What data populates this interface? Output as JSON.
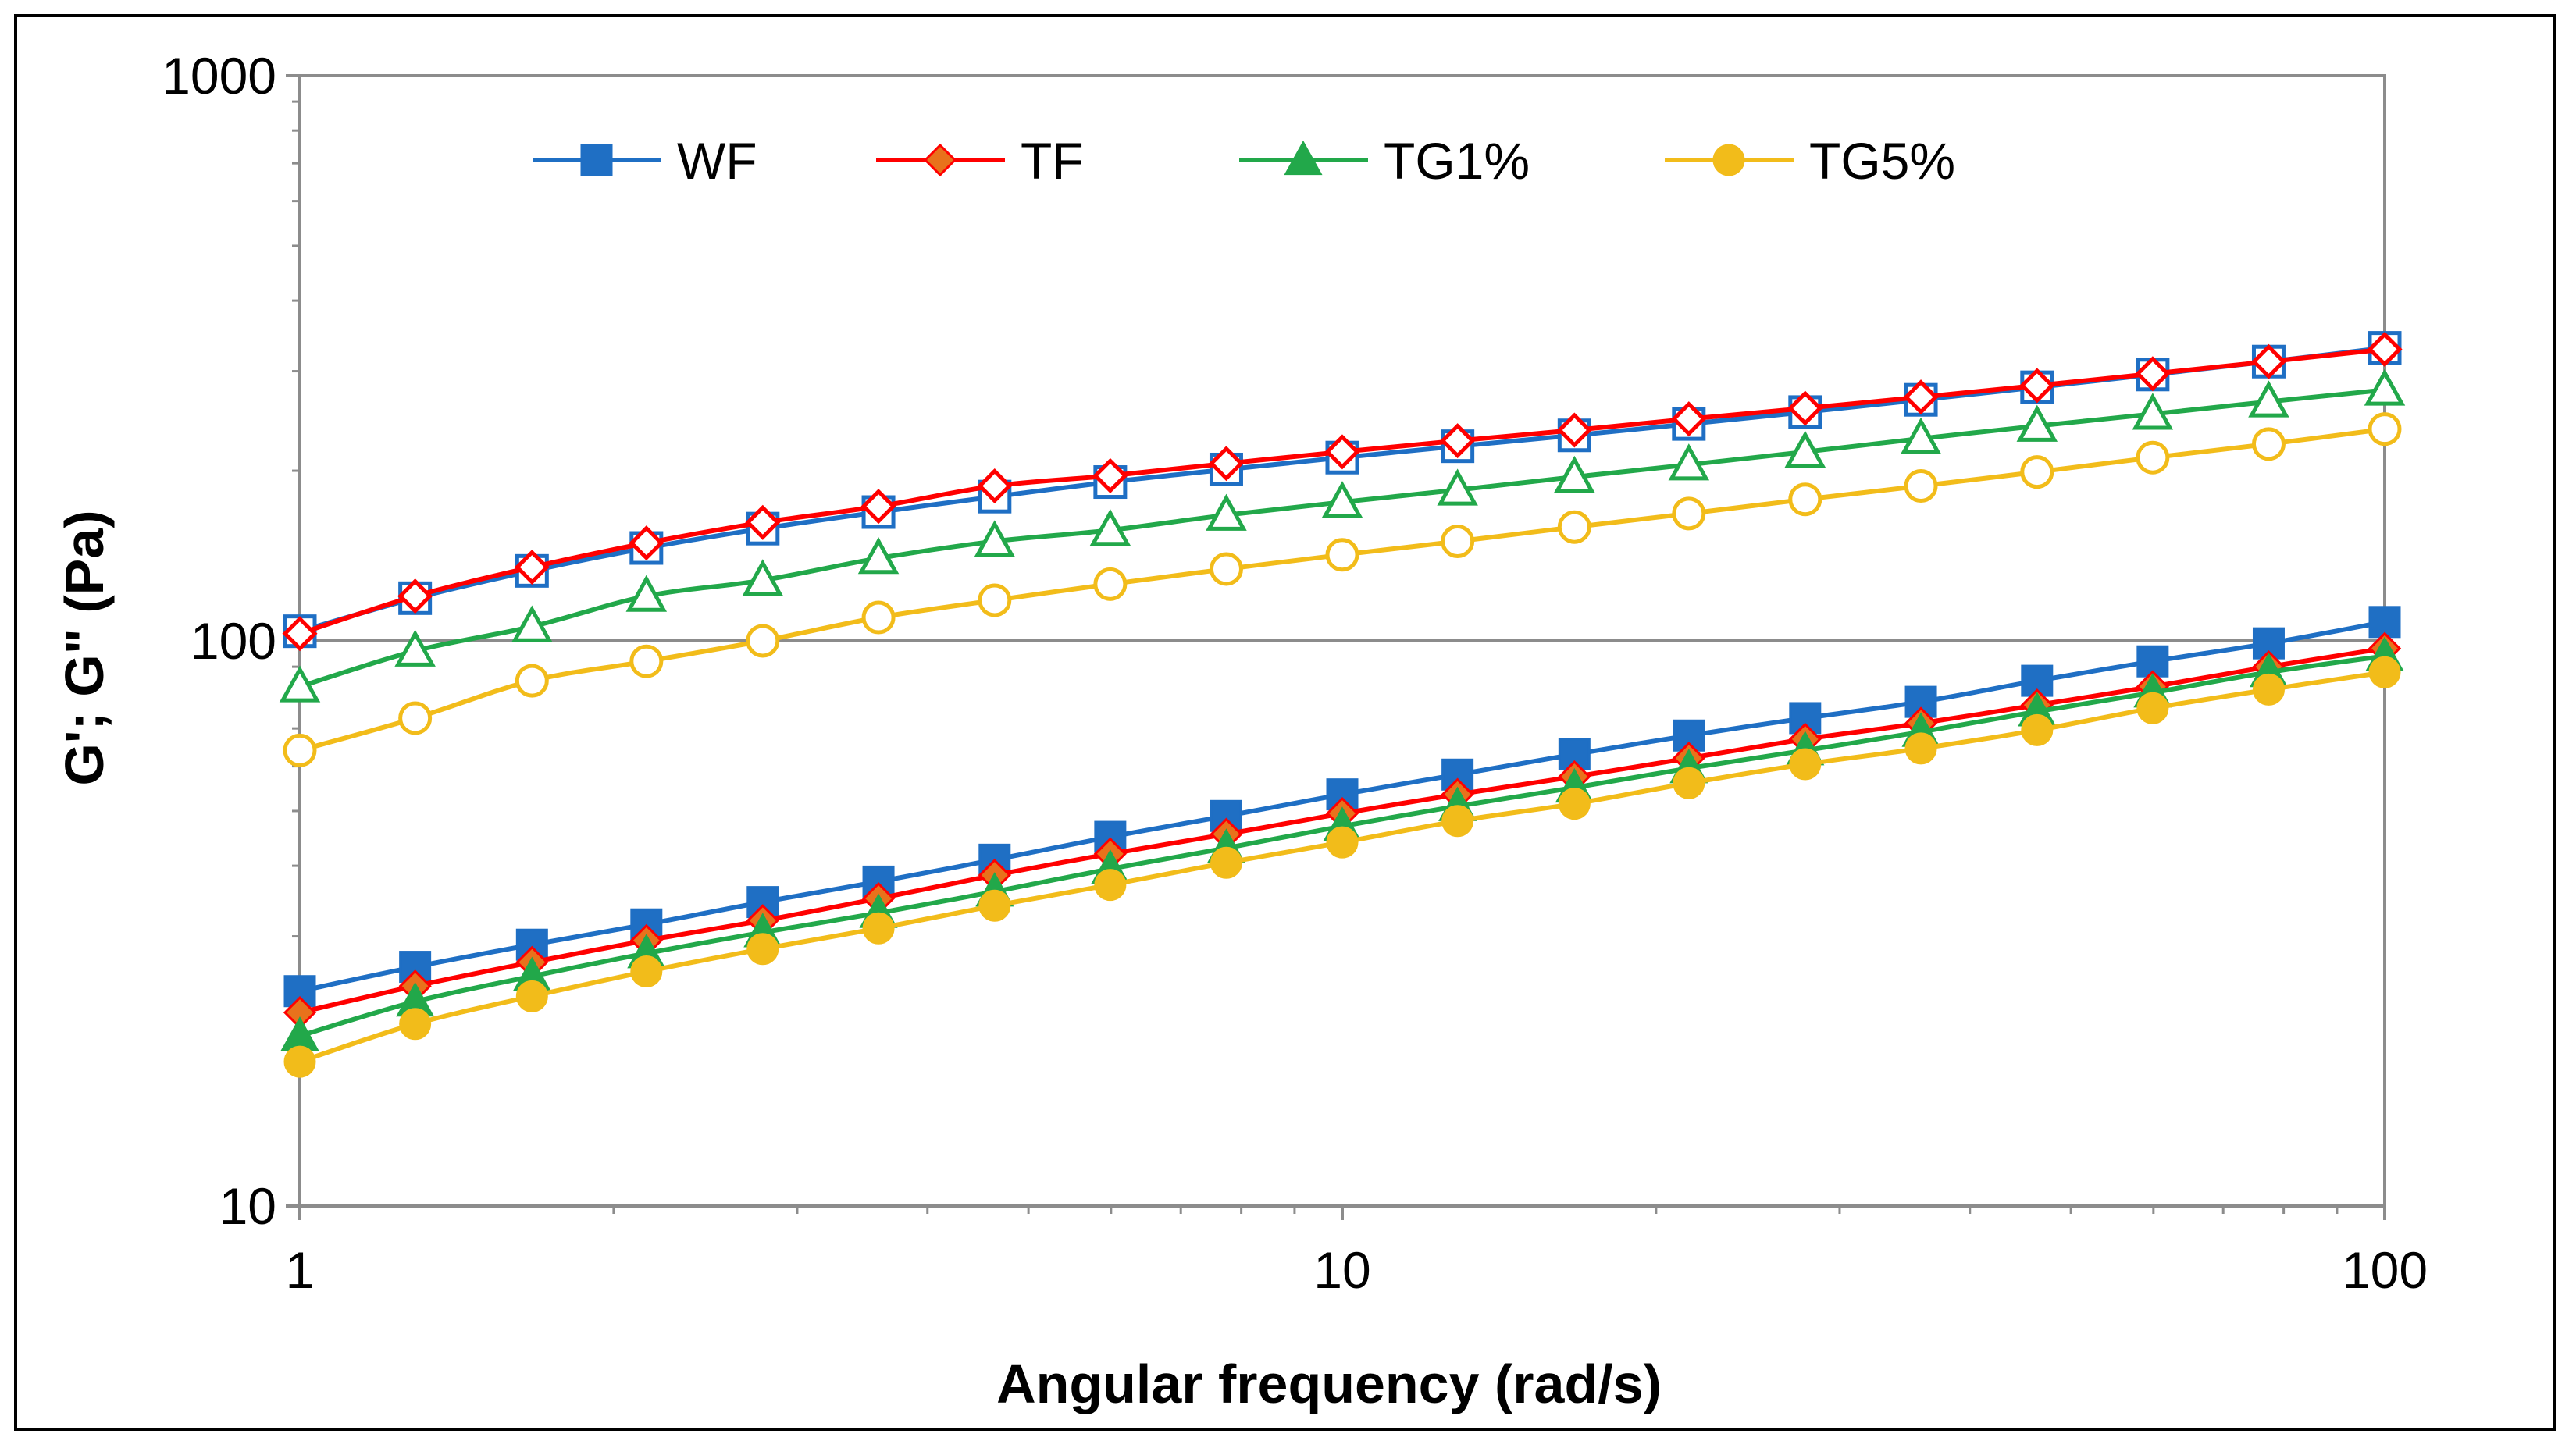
{
  "chart_data": {
    "type": "line",
    "title": "",
    "xlabel": "Angular frequency (rad/s)",
    "ylabel": "G'; G\" (Pa)",
    "xscale": "log",
    "yscale": "log",
    "xlim": [
      1,
      100
    ],
    "ylim": [
      10,
      1000
    ],
    "x_ticks": [
      1,
      10,
      100
    ],
    "x_tick_labels": [
      "1",
      "10",
      "100"
    ],
    "y_ticks": [
      10,
      100,
      1000
    ],
    "y_tick_labels": [
      "10",
      "100",
      "1000"
    ],
    "grid": "horizontal major",
    "legend_position": "top",
    "x": [
      1,
      1.29,
      1.67,
      2.15,
      2.78,
      3.59,
      4.64,
      5.99,
      7.74,
      10,
      12.9,
      16.7,
      21.5,
      27.8,
      35.9,
      46.4,
      59.9,
      77.4,
      100
    ],
    "legend": [
      {
        "name": "WF",
        "color": "#1f6fc4",
        "marker": "square"
      },
      {
        "name": "TF",
        "color": "#ff0000",
        "marker_fill": "#e8721c",
        "marker": "diamond"
      },
      {
        "name": "TG1%",
        "color": "#22a84a",
        "marker": "triangle"
      },
      {
        "name": "TG5%",
        "color": "#f2bc1a",
        "marker": "circle"
      }
    ],
    "series": [
      {
        "name": "WF G'",
        "sample": "WF",
        "modulus": "storage",
        "filled": false,
        "color": "#1f6fc4",
        "marker": "square",
        "values": [
          104,
          119,
          133,
          146,
          158,
          169,
          180,
          191,
          201,
          211,
          221,
          231,
          242,
          254,
          267,
          281,
          296,
          312,
          330
        ]
      },
      {
        "name": "TF G'",
        "sample": "TF",
        "modulus": "storage",
        "filled": false,
        "color": "#ff0000",
        "marker": "diamond",
        "values": [
          103,
          120,
          135,
          149,
          162,
          173,
          188,
          196,
          206,
          216,
          226,
          236,
          247,
          258,
          270,
          283,
          297,
          312,
          328
        ]
      },
      {
        "name": "TG1% G'",
        "sample": "TG1%",
        "modulus": "storage",
        "filled": false,
        "color": "#22a84a",
        "marker": "triangle",
        "values": [
          83,
          96,
          106,
          120,
          128,
          140,
          150,
          157,
          167,
          176,
          185,
          195,
          205,
          216,
          228,
          240,
          252,
          265,
          278
        ]
      },
      {
        "name": "TG5% G'",
        "sample": "TG5%",
        "modulus": "storage",
        "filled": false,
        "color": "#f2bc1a",
        "marker": "circle",
        "values": [
          64,
          73,
          85,
          92,
          100,
          110,
          118,
          126,
          134,
          142,
          150,
          159,
          168,
          178,
          188,
          199,
          211,
          223,
          237
        ]
      },
      {
        "name": "WF G\"",
        "sample": "WF",
        "modulus": "loss",
        "filled": true,
        "color": "#1f6fc4",
        "marker": "square",
        "values": [
          24,
          26.5,
          29,
          31.5,
          34.5,
          37.5,
          41,
          45,
          49,
          53.5,
          58,
          63,
          68,
          73,
          78,
          85,
          92,
          99,
          108
        ]
      },
      {
        "name": "TF G\"",
        "sample": "TF",
        "modulus": "loss",
        "filled": true,
        "color": "#ff0000",
        "marker_fill": "#e8721c",
        "marker": "diamond",
        "values": [
          22,
          24.5,
          27,
          29.5,
          32,
          35,
          38.5,
          42,
          45.5,
          49.5,
          53.5,
          57.5,
          62,
          67,
          71.5,
          77,
          83,
          90,
          97
        ]
      },
      {
        "name": "TG1% G\"",
        "sample": "TG1%",
        "modulus": "loss",
        "filled": true,
        "color": "#22a84a",
        "marker": "triangle",
        "values": [
          20,
          23,
          25.5,
          28,
          30.5,
          33,
          36,
          39.5,
          43,
          47,
          51,
          55,
          59.5,
          64,
          69,
          75,
          81,
          88,
          94
        ]
      },
      {
        "name": "TG5% G\"",
        "sample": "TG5%",
        "modulus": "loss",
        "filled": true,
        "color": "#f2bc1a",
        "marker": "circle",
        "values": [
          18,
          21,
          23.5,
          26,
          28.5,
          31,
          34,
          37,
          40.5,
          44,
          48,
          51.5,
          56,
          60.5,
          64.5,
          69.5,
          76,
          82,
          88
        ]
      }
    ]
  }
}
